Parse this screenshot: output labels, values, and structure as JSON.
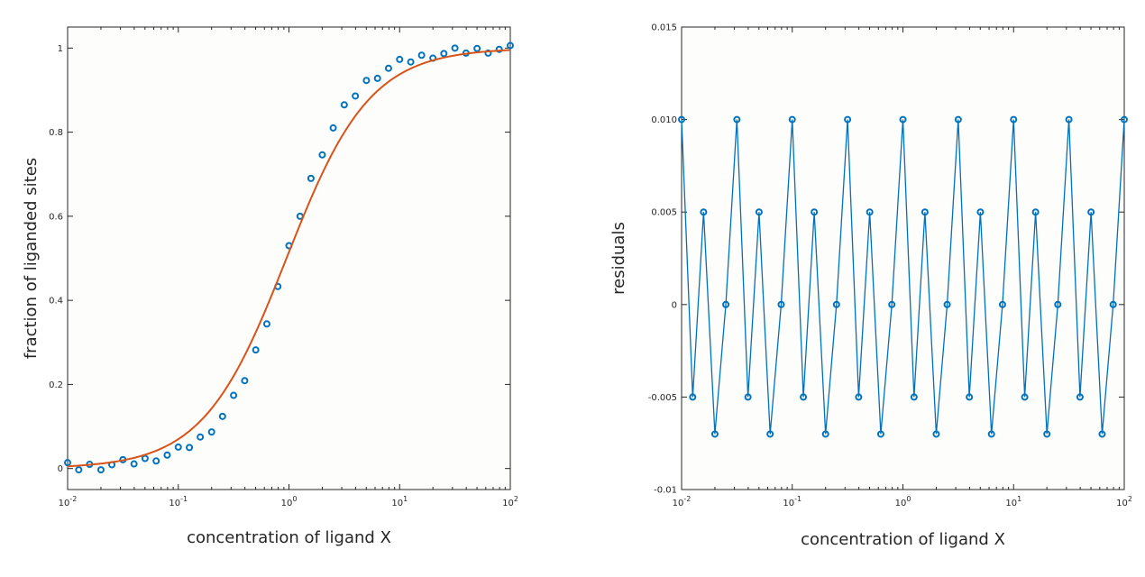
{
  "chart_data": [
    {
      "type": "scatter",
      "xscale": "log",
      "xlim": [
        0.01,
        100
      ],
      "ylim": [
        -0.05,
        1.05
      ],
      "xlabel": "concentration of ligand X",
      "ylabel": "fraction of liganded sites",
      "xtick_exponents": [
        "-2",
        "-1",
        "0",
        "1",
        "2"
      ],
      "ytick_values": [
        0,
        0.2,
        0.4,
        0.6,
        0.8,
        1
      ],
      "ytick_labels": [
        "0",
        "0.2",
        "0.4",
        "0.6",
        "0.8",
        "1"
      ],
      "series": [
        {
          "kind": "markers",
          "color": "#0072bd",
          "x": [
            0.01,
            0.0126,
            0.0158,
            0.02,
            0.0251,
            0.0316,
            0.0398,
            0.0501,
            0.0631,
            0.0794,
            0.1,
            0.126,
            0.158,
            0.2,
            0.251,
            0.316,
            0.398,
            0.501,
            0.631,
            0.794,
            1.0,
            1.26,
            1.58,
            2.0,
            2.51,
            3.16,
            3.98,
            5.01,
            6.31,
            7.94,
            10.0,
            12.6,
            15.8,
            20.0,
            25.1,
            31.6,
            39.8,
            50.1,
            63.1,
            79.4,
            100
          ],
          "y": [
            0.014,
            -0.003,
            0.01,
            -0.003,
            0.009,
            0.021,
            0.011,
            0.024,
            0.018,
            0.032,
            0.051,
            0.05,
            0.075,
            0.087,
            0.124,
            0.174,
            0.209,
            0.282,
            0.344,
            0.433,
            0.53,
            0.6,
            0.69,
            0.746,
            0.81,
            0.865,
            0.886,
            0.923,
            0.928,
            0.952,
            0.973,
            0.967,
            0.983,
            0.976,
            0.987,
            1.0,
            0.988,
            0.999,
            0.988,
            0.997,
            1.006
          ]
        },
        {
          "kind": "line",
          "color": "#d95319",
          "model": "x^n/(K^n + x^n)",
          "K": 0.95,
          "n": 1.15
        }
      ]
    },
    {
      "type": "line",
      "xscale": "log",
      "xlim": [
        0.01,
        100
      ],
      "ylim": [
        -0.01,
        0.015
      ],
      "xlabel": "concentration of ligand X",
      "ylabel": "residuals",
      "xtick_exponents": [
        "-2",
        "-1",
        "0",
        "1",
        "2"
      ],
      "ytick_values": [
        -0.01,
        -0.005,
        0,
        0.005,
        0.01,
        0.015
      ],
      "ytick_labels": [
        "-0.01",
        "-0.005",
        "0",
        "0.005",
        "0.010",
        "0.015"
      ],
      "series": [
        {
          "kind": "line-markers",
          "color": "#0072bd",
          "x": [
            0.01,
            0.0126,
            0.0158,
            0.02,
            0.0251,
            0.0316,
            0.0398,
            0.0501,
            0.0631,
            0.0794,
            0.1,
            0.126,
            0.158,
            0.2,
            0.251,
            0.316,
            0.398,
            0.501,
            0.631,
            0.794,
            1.0,
            1.26,
            1.58,
            2.0,
            2.51,
            3.16,
            3.98,
            5.01,
            6.31,
            7.94,
            10.0,
            12.6,
            15.8,
            20.0,
            25.1,
            31.6,
            39.8,
            50.1,
            63.1,
            79.4,
            100
          ],
          "y": [
            0.01,
            -0.005,
            0.005,
            -0.007,
            0,
            0.01,
            -0.005,
            0.005,
            -0.007,
            0,
            0.01,
            -0.005,
            0.005,
            -0.007,
            0,
            0.01,
            -0.005,
            0.005,
            -0.007,
            0,
            0.01,
            -0.005,
            0.005,
            -0.007,
            0,
            0.01,
            -0.005,
            0.005,
            -0.007,
            0,
            0.01,
            -0.005,
            0.005,
            -0.007,
            0,
            0.01,
            -0.005,
            0.005,
            -0.007,
            0,
            0.01
          ]
        }
      ]
    }
  ]
}
